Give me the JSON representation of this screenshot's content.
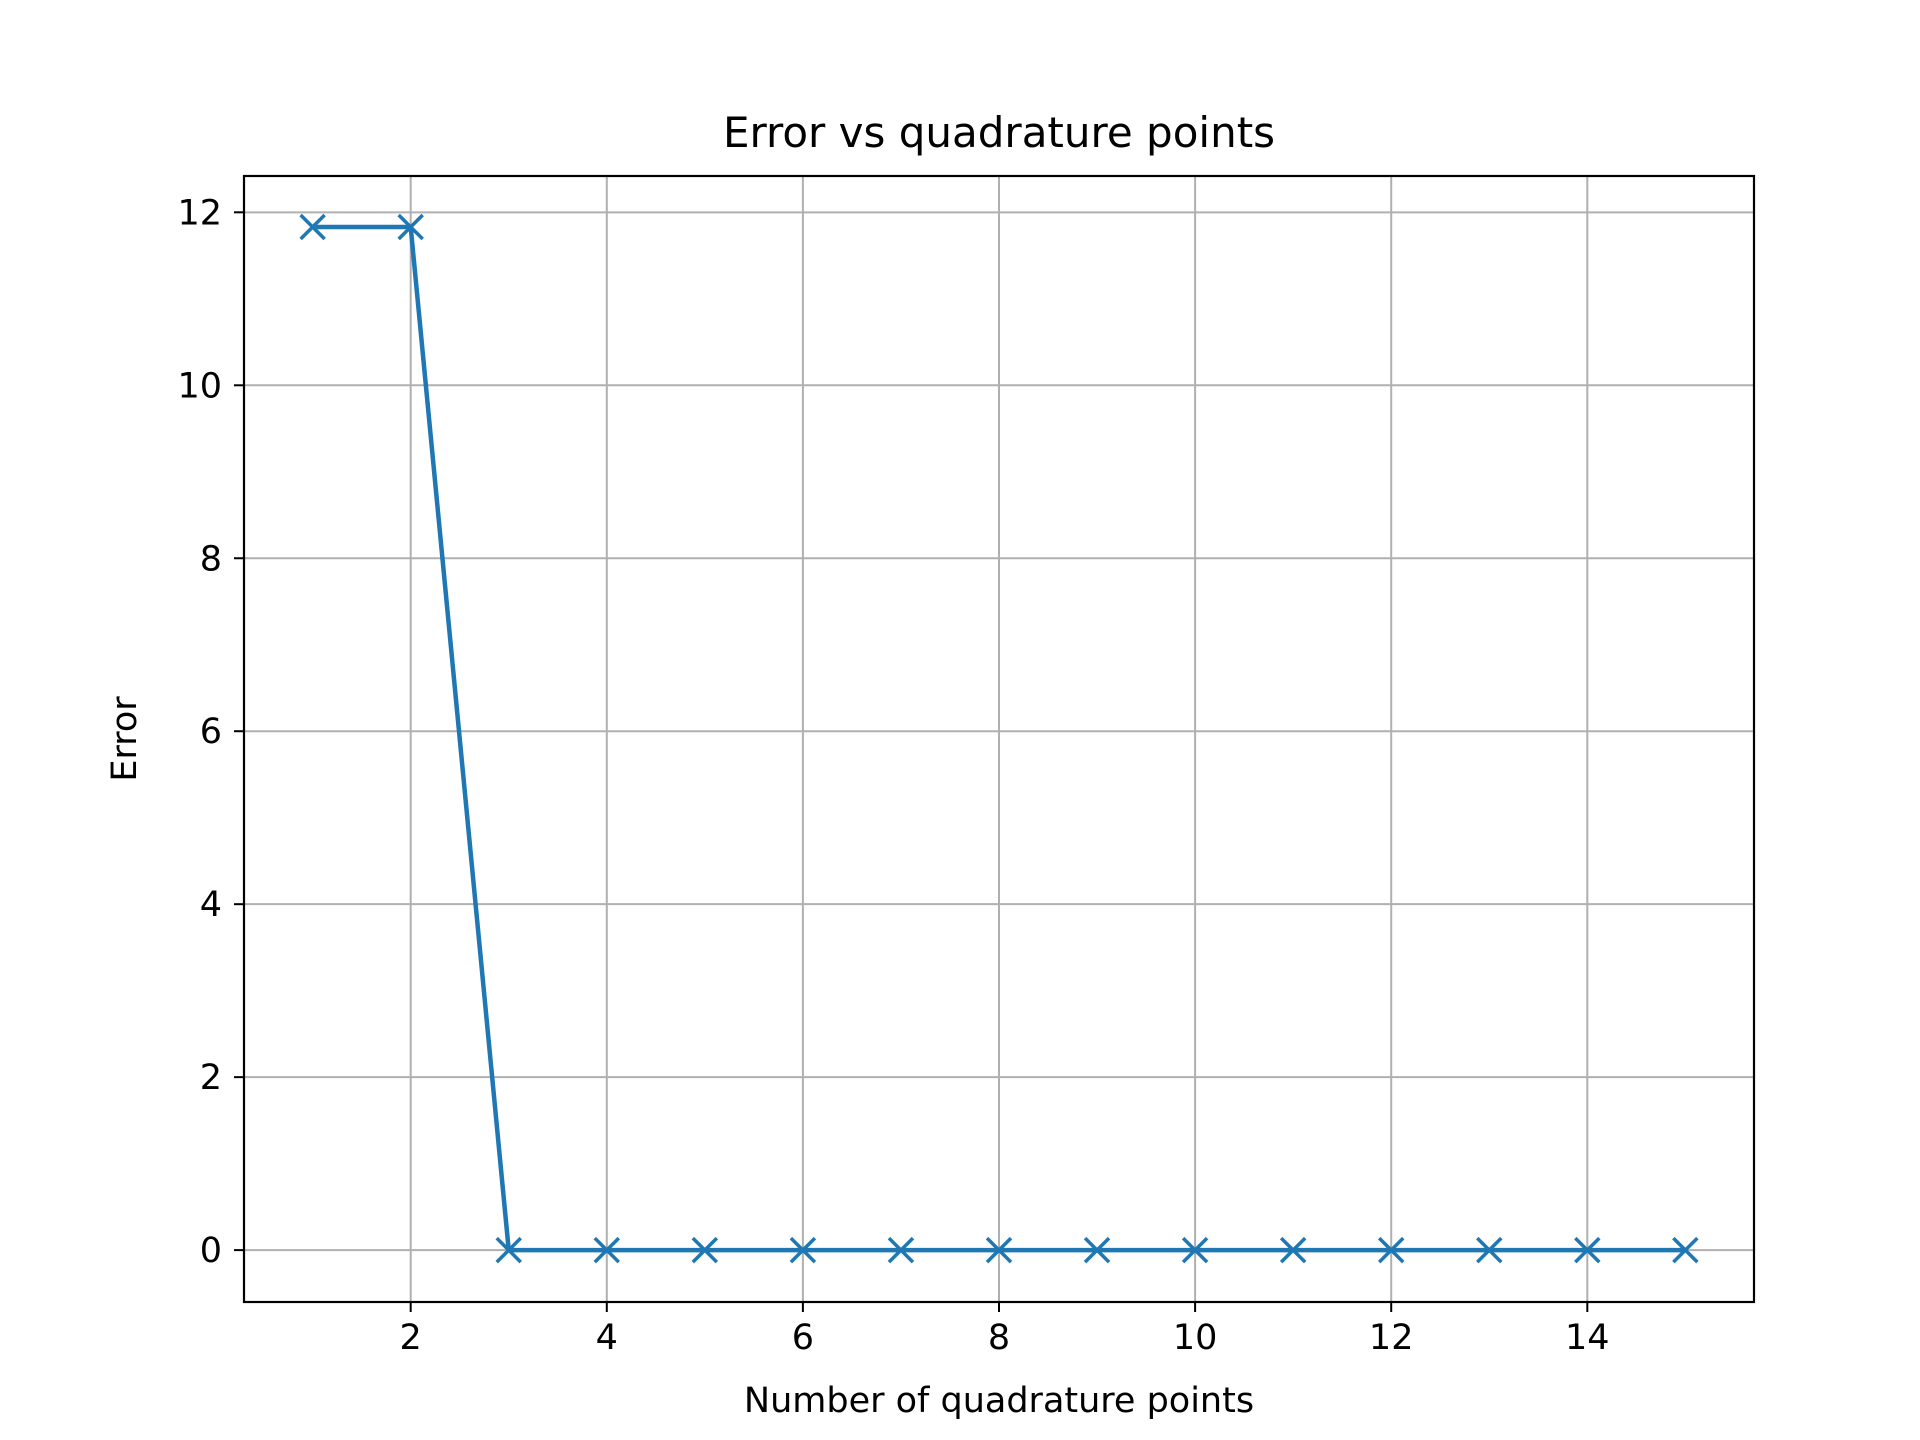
{
  "chart_data": {
    "type": "line",
    "title": "Error vs quadrature points",
    "xlabel": "Number of quadrature points",
    "ylabel": "Error",
    "x": [
      1,
      2,
      3,
      4,
      5,
      6,
      7,
      8,
      9,
      10,
      11,
      12,
      13,
      14,
      15
    ],
    "series": [
      {
        "values": [
          11.83,
          11.83,
          0,
          0,
          0,
          0,
          0,
          0,
          0,
          0,
          0,
          0,
          0,
          0,
          0
        ],
        "color": "#1f77b4",
        "marker": "x"
      }
    ],
    "xlim": [
      0.3,
      15.7
    ],
    "ylim": [
      -0.6,
      12.42
    ],
    "xticks": [
      2,
      4,
      6,
      8,
      10,
      12,
      14
    ],
    "yticks": [
      0,
      2,
      4,
      6,
      8,
      10,
      12
    ],
    "grid": true
  }
}
